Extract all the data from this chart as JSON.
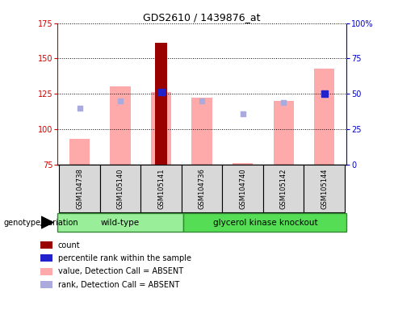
{
  "title": "GDS2610 / 1439876_at",
  "samples": [
    "GSM104738",
    "GSM105140",
    "GSM105141",
    "GSM104736",
    "GSM104740",
    "GSM105142",
    "GSM105144"
  ],
  "ylim_left": [
    75,
    175
  ],
  "ylim_right": [
    0,
    100
  ],
  "yticks_left": [
    75,
    100,
    125,
    150,
    175
  ],
  "yticks_right": [
    0,
    25,
    50,
    75,
    100
  ],
  "ytick_labels_right": [
    "0",
    "25",
    "50",
    "75",
    "100%"
  ],
  "group1_label": "wild-type",
  "group2_label": "glycerol kinase knockout",
  "group1_color": "#99ee99",
  "group2_color": "#55dd55",
  "genotype_label": "genotype/variation",
  "count_bar": {
    "index": 2,
    "value": 161,
    "color": "#990000"
  },
  "pink_bars": {
    "indices": [
      0,
      1,
      2,
      3,
      4,
      5,
      6
    ],
    "values": [
      93,
      130,
      126,
      122,
      76,
      120,
      143
    ],
    "color": "#ffaaaa"
  },
  "blue_squares": {
    "indices": [
      2,
      6
    ],
    "values": [
      126,
      125
    ],
    "color": "#2222cc",
    "size": 30
  },
  "light_blue_squares": {
    "indices": [
      0,
      1,
      3,
      4,
      5
    ],
    "values": [
      115,
      120,
      120,
      111,
      119
    ],
    "color": "#aaaadd",
    "size": 25
  },
  "legend_items": [
    {
      "label": "count",
      "color": "#990000"
    },
    {
      "label": "percentile rank within the sample",
      "color": "#2222cc"
    },
    {
      "label": "value, Detection Call = ABSENT",
      "color": "#ffaaaa"
    },
    {
      "label": "rank, Detection Call = ABSENT",
      "color": "#aaaadd"
    }
  ],
  "ylabel_left_color": "#cc0000",
  "ylabel_right_color": "#0000cc",
  "background_color": "#ffffff",
  "grid_color": "#000000",
  "bar_width": 0.5,
  "count_bar_width": 0.3
}
